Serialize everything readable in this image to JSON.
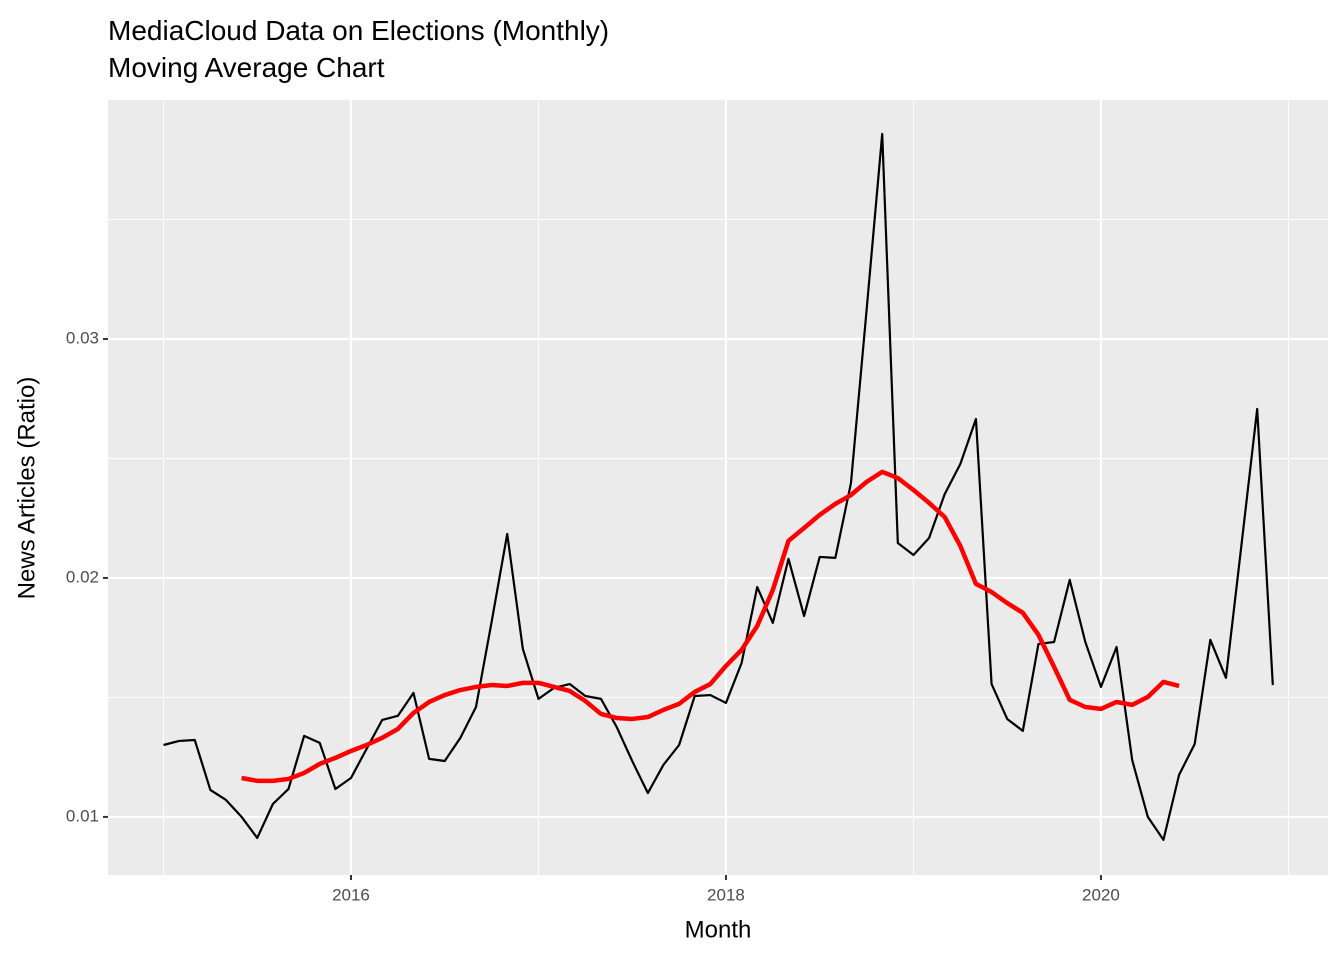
{
  "chart_data": {
    "type": "line",
    "title": "MediaCloud Data on Elections (Monthly)",
    "subtitle": "Moving Average Chart",
    "x_label": "Month",
    "y_label": "News Articles (Ratio)",
    "x": [
      "2015-01",
      "2015-02",
      "2015-03",
      "2015-04",
      "2015-05",
      "2015-06",
      "2015-07",
      "2015-08",
      "2015-09",
      "2015-10",
      "2015-11",
      "2015-12",
      "2016-01",
      "2016-02",
      "2016-03",
      "2016-04",
      "2016-05",
      "2016-06",
      "2016-07",
      "2016-08",
      "2016-09",
      "2016-10",
      "2016-11",
      "2016-12",
      "2017-01",
      "2017-02",
      "2017-03",
      "2017-04",
      "2017-05",
      "2017-06",
      "2017-07",
      "2017-08",
      "2017-09",
      "2017-10",
      "2017-11",
      "2017-12",
      "2018-01",
      "2018-02",
      "2018-03",
      "2018-04",
      "2018-05",
      "2018-06",
      "2018-07",
      "2018-08",
      "2018-09",
      "2018-10",
      "2018-11",
      "2018-12",
      "2019-01",
      "2019-02",
      "2019-03",
      "2019-04",
      "2019-05",
      "2019-06",
      "2019-07",
      "2019-08",
      "2019-09",
      "2019-10",
      "2019-11",
      "2019-12",
      "2020-01",
      "2020-02",
      "2020-03",
      "2020-04",
      "2020-05",
      "2020-06",
      "2020-07",
      "2020-08",
      "2020-09",
      "2020-10",
      "2020-11",
      "2020-12"
    ],
    "series": [
      {
        "color": "#000000",
        "width": 2.2,
        "values": [
          0.01301,
          0.01318,
          0.01322,
          0.01113,
          0.01071,
          0.01,
          0.00912,
          0.01054,
          0.01117,
          0.01339,
          0.0131,
          0.01117,
          0.01163,
          0.01285,
          0.01406,
          0.01423,
          0.01519,
          0.01243,
          0.01234,
          0.01331,
          0.0146,
          0.01816,
          0.02184,
          0.01703,
          0.01494,
          0.0154,
          0.01556,
          0.01506,
          0.01494,
          0.01377,
          0.01234,
          0.011,
          0.01218,
          0.01301,
          0.01506,
          0.0151,
          0.01477,
          0.01644,
          0.01962,
          0.01812,
          0.0208,
          0.01841,
          0.02088,
          0.02084,
          0.02397,
          0.03121,
          0.03858,
          0.02146,
          0.02096,
          0.02167,
          0.02351,
          0.02477,
          0.02665,
          0.01556,
          0.0141,
          0.0136,
          0.01724,
          0.01732,
          0.01992,
          0.01732,
          0.01544,
          0.01711,
          0.01238,
          0.01,
          0.00904,
          0.01176,
          0.01305,
          0.01741,
          0.01582,
          0.02142,
          0.02707,
          0.01552
        ]
      },
      {
        "color": "#ff0000",
        "width": 4.5,
        "values": [
          null,
          null,
          null,
          null,
          null,
          0.01163,
          0.01151,
          0.01151,
          0.01159,
          0.01184,
          0.01222,
          0.01247,
          0.01276,
          0.01301,
          0.01331,
          0.01368,
          0.01435,
          0.01481,
          0.0151,
          0.01531,
          0.01544,
          0.01552,
          0.01548,
          0.01561,
          0.01561,
          0.01544,
          0.01527,
          0.01485,
          0.01431,
          0.01414,
          0.0141,
          0.01418,
          0.01448,
          0.01473,
          0.01523,
          0.01556,
          0.01632,
          0.01699,
          0.01799,
          0.0195,
          0.02155,
          0.02209,
          0.02264,
          0.0231,
          0.02347,
          0.02402,
          0.02444,
          0.02418,
          0.02368,
          0.02314,
          0.02255,
          0.02134,
          0.01975,
          0.01941,
          0.01895,
          0.01854,
          0.01762,
          0.01628,
          0.0149,
          0.0146,
          0.01452,
          0.01481,
          0.01469,
          0.01502,
          0.01565,
          0.01548,
          null,
          null,
          null,
          null,
          null,
          null
        ]
      }
    ],
    "xlim": [
      2014.704,
      2021.211
    ],
    "xticks": [
      2016,
      2018,
      2020
    ],
    "xticks_minor": [
      2015,
      2017,
      2019,
      2021
    ],
    "ylim": [
      0.00757,
      0.04
    ],
    "yticks": [
      0.01,
      0.02,
      0.03
    ],
    "yticks_minor": [
      0.015,
      0.025,
      0.035
    ],
    "grid": true,
    "panel_color": "#ebebeb"
  }
}
